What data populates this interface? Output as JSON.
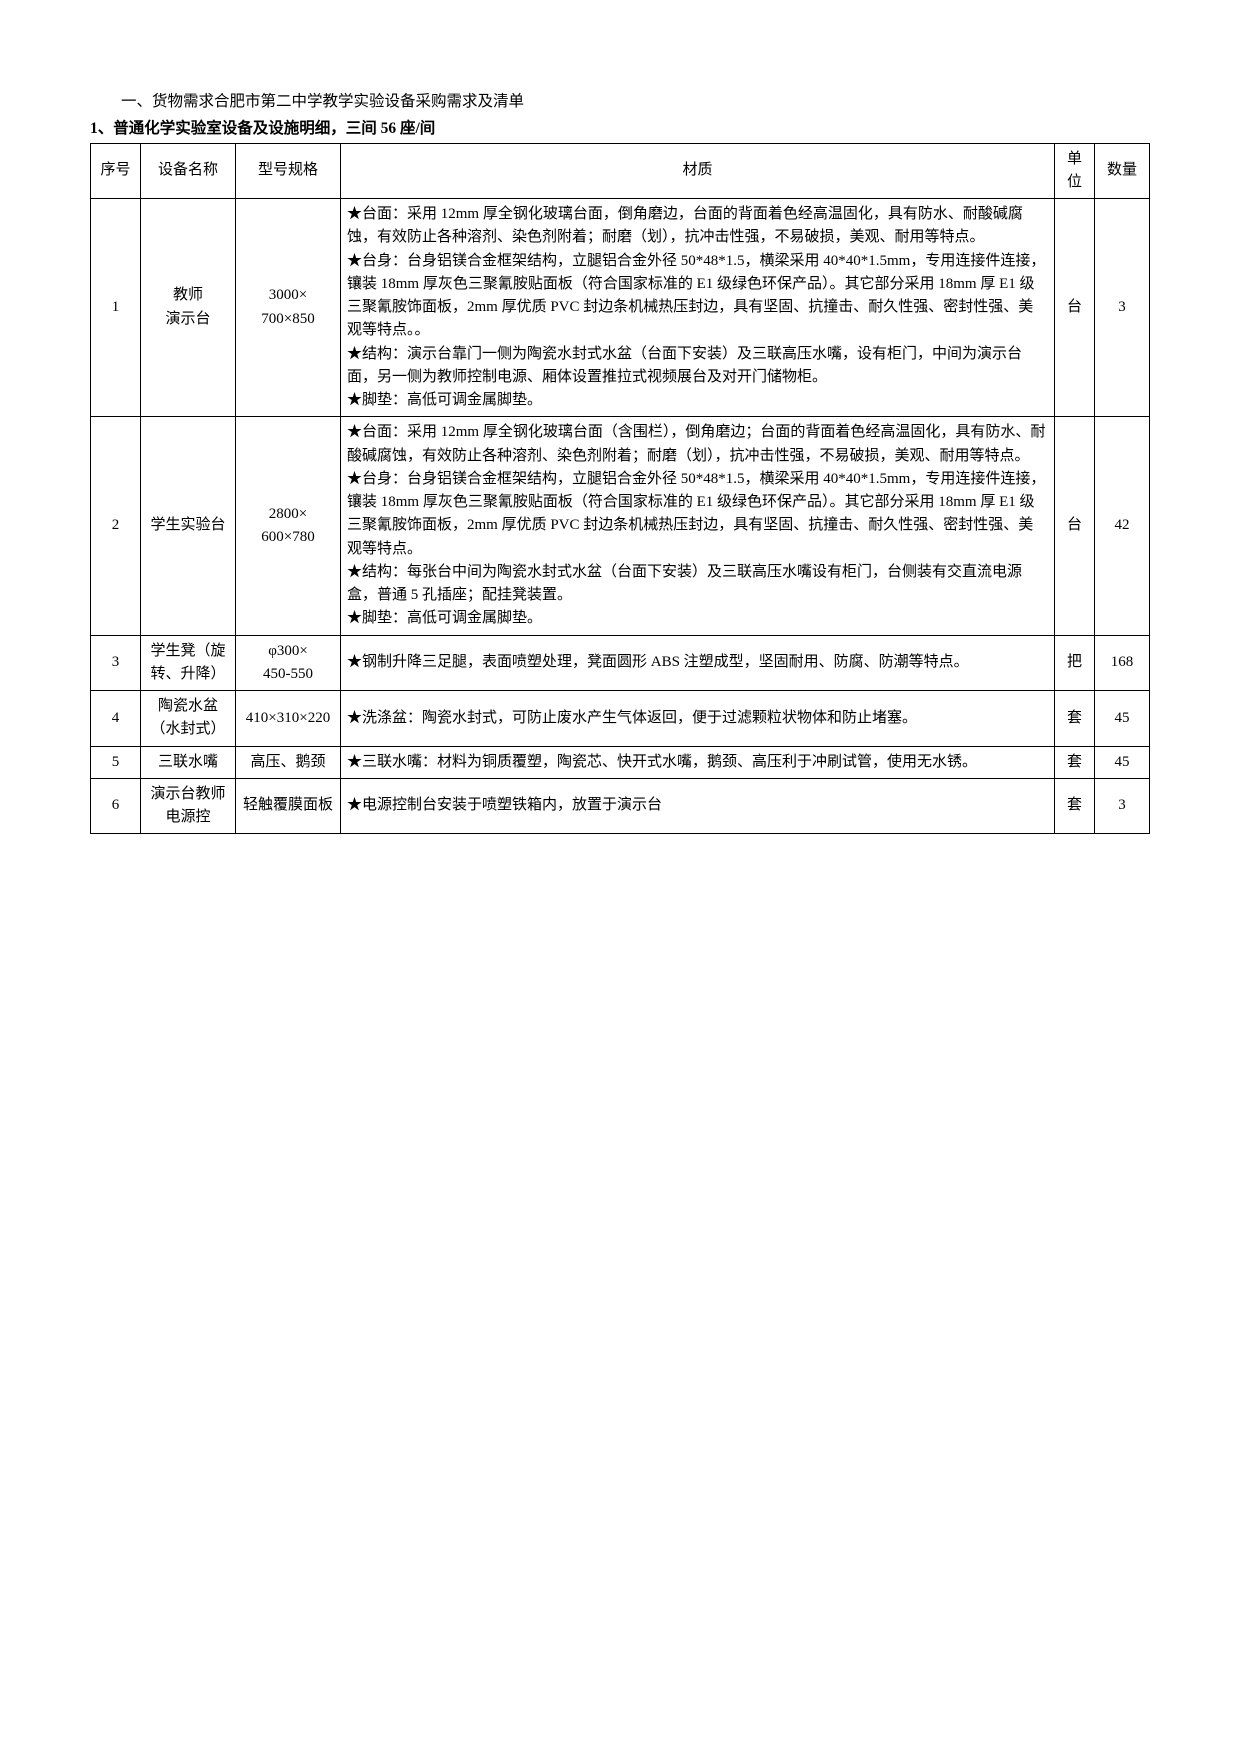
{
  "heading": "一、货物需求合肥市第二中学教学实验设备采购需求及清单",
  "subheading": "1、普通化学实验室设备及设施明细，三间 56 座/间",
  "columns": {
    "idx": "序号",
    "name": "设备名称",
    "spec": "型号规格",
    "material": "材质",
    "unit": "单位",
    "qty": "数量"
  },
  "rows": [
    {
      "idx": "1",
      "name": "教师\n演示台",
      "spec": "3000×\n700×850",
      "material": "★台面：采用 12mm 厚全钢化玻璃台面，倒角磨边，台面的背面着色经高温固化，具有防水、耐酸碱腐蚀，有效防止各种溶剂、染色剂附着；耐磨（划），抗冲击性强，不易破损，美观、耐用等特点。\n★台身：台身铝镁合金框架结构，立腿铝合金外径 50*48*1.5，横梁采用 40*40*1.5mm，专用连接件连接，镶装 18mm 厚灰色三聚氰胺贴面板（符合国家标准的 E1 级绿色环保产品）。其它部分采用 18mm 厚 E1 级三聚氰胺饰面板，2mm 厚优质 PVC 封边条机械热压封边，具有坚固、抗撞击、耐久性强、密封性强、美观等特点。。\n★结构：演示台靠门一侧为陶瓷水封式水盆（台面下安装）及三联高压水嘴，设有柜门，中间为演示台面，另一侧为教师控制电源、厢体设置推拉式视频展台及对开门储物柜。\n★脚垫：高低可调金属脚垫。",
      "unit": "台",
      "qty": "3"
    },
    {
      "idx": "2",
      "name": "学生实验台",
      "spec": "2800×\n600×780",
      "material": "★台面：采用 12mm 厚全钢化玻璃台面（含围栏），倒角磨边；台面的背面着色经高温固化，具有防水、耐酸碱腐蚀，有效防止各种溶剂、染色剂附着；耐磨（划），抗冲击性强，不易破损，美观、耐用等特点。\n★台身：台身铝镁合金框架结构，立腿铝合金外径 50*48*1.5，横梁采用 40*40*1.5mm，专用连接件连接，镶装 18mm 厚灰色三聚氰胺贴面板（符合国家标准的 E1 级绿色环保产品）。其它部分采用 18mm 厚 E1 级三聚氰胺饰面板，2mm 厚优质 PVC 封边条机械热压封边，具有坚固、抗撞击、耐久性强、密封性强、美观等特点。\n★结构：每张台中间为陶瓷水封式水盆（台面下安装）及三联高压水嘴设有柜门，台侧装有交直流电源盒，普通 5 孔插座；配挂凳装置。\n★脚垫：高低可调金属脚垫。",
      "unit": "台",
      "qty": "42"
    },
    {
      "idx": "3",
      "name": "学生凳（旋转、升降）",
      "spec": "φ300×\n450-550",
      "material": "★钢制升降三足腿，表面喷塑处理，凳面圆形 ABS 注塑成型，坚固耐用、防腐、防潮等特点。",
      "unit": "把",
      "qty": "168"
    },
    {
      "idx": "4",
      "name": "陶瓷水盆（水封式）",
      "spec": "410×310×220",
      "material": "★洗涤盆：陶瓷水封式，可防止废水产生气体返回，便于过滤颗粒状物体和防止堵塞。",
      "unit": "套",
      "qty": "45"
    },
    {
      "idx": "5",
      "name": "三联水嘴",
      "spec": "高压、鹅颈",
      "material": "★三联水嘴：材料为铜质覆塑，陶瓷芯、快开式水嘴，鹅颈、高压利于冲刷试管，使用无水锈。",
      "unit": "套",
      "qty": "45"
    },
    {
      "idx": "6",
      "name": "演示台教师电源控",
      "spec": "轻触覆膜面板",
      "material": "★电源控制台安装于喷塑铁箱内，放置于演示台",
      "unit": "套",
      "qty": "3"
    }
  ]
}
